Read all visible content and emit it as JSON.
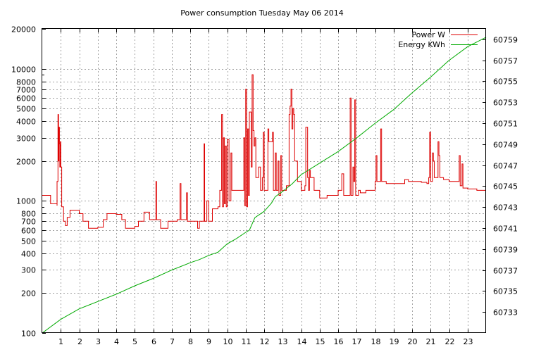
{
  "chart_data": {
    "type": "line",
    "title": "Power consumption Tuesday May 06 2014",
    "xlabel": "",
    "ylabel": "",
    "y2label": "",
    "xlim": [
      0,
      24
    ],
    "ylim": [
      100,
      20000
    ],
    "y_scale": "log",
    "y2lim": [
      60731,
      60760
    ],
    "grid": true,
    "legend_position": "top-right",
    "x_ticks": [
      "1",
      "2",
      "3",
      "4",
      "5",
      "6",
      "7",
      "8",
      "9",
      "10",
      "11",
      "12",
      "13",
      "14",
      "15",
      "16",
      "17",
      "18",
      "19",
      "20",
      "21",
      "22",
      "23"
    ],
    "y_ticks": [
      {
        "v": 100,
        "label": "100"
      },
      {
        "v": 200,
        "label": "200"
      },
      {
        "v": 300,
        "label": "300"
      },
      {
        "v": 400,
        "label": "400"
      },
      {
        "v": 500,
        "label": "500"
      },
      {
        "v": 600,
        "label": "600"
      },
      {
        "v": 700,
        "label": "700"
      },
      {
        "v": 800,
        "label": "800"
      },
      {
        "v": 1000,
        "label": "1000"
      },
      {
        "v": 2000,
        "label": "2000"
      },
      {
        "v": 3000,
        "label": "3000"
      },
      {
        "v": 4000,
        "label": "4000"
      },
      {
        "v": 5000,
        "label": "5000"
      },
      {
        "v": 6000,
        "label": "6000"
      },
      {
        "v": 7000,
        "label": "7000"
      },
      {
        "v": 8000,
        "label": "8000"
      },
      {
        "v": 10000,
        "label": "10000"
      },
      {
        "v": 20000,
        "label": "20000"
      }
    ],
    "y2_ticks": [
      "60733",
      "60735",
      "60737",
      "60739",
      "60741",
      "60743",
      "60745",
      "60747",
      "60749",
      "60751",
      "60753",
      "60755",
      "60757",
      "60759"
    ],
    "series": [
      {
        "name": "Power W",
        "axis": "left",
        "color": "#dd0000",
        "step": true,
        "points": [
          [
            0.0,
            1100
          ],
          [
            0.45,
            950
          ],
          [
            0.8,
            920
          ],
          [
            0.8,
            1400
          ],
          [
            0.85,
            4500
          ],
          [
            0.88,
            2000
          ],
          [
            0.9,
            3600
          ],
          [
            0.93,
            2700
          ],
          [
            0.95,
            1800
          ],
          [
            0.98,
            2800
          ],
          [
            1.0,
            1800
          ],
          [
            1.05,
            900
          ],
          [
            1.15,
            700
          ],
          [
            1.25,
            650
          ],
          [
            1.35,
            750
          ],
          [
            1.5,
            850
          ],
          [
            2.0,
            800
          ],
          [
            2.2,
            700
          ],
          [
            2.5,
            620
          ],
          [
            3.0,
            630
          ],
          [
            3.3,
            720
          ],
          [
            3.5,
            800
          ],
          [
            4.0,
            790
          ],
          [
            4.3,
            720
          ],
          [
            4.5,
            620
          ],
          [
            5.0,
            640
          ],
          [
            5.2,
            700
          ],
          [
            5.5,
            820
          ],
          [
            5.8,
            720
          ],
          [
            6.1,
            720
          ],
          [
            6.15,
            1400
          ],
          [
            6.18,
            720
          ],
          [
            6.4,
            620
          ],
          [
            6.8,
            700
          ],
          [
            7.3,
            720
          ],
          [
            7.45,
            1350
          ],
          [
            7.5,
            720
          ],
          [
            7.8,
            1150
          ],
          [
            7.85,
            700
          ],
          [
            8.4,
            620
          ],
          [
            8.5,
            700
          ],
          [
            8.6,
            700
          ],
          [
            8.75,
            2700
          ],
          [
            8.78,
            700
          ],
          [
            8.9,
            1000
          ],
          [
            9.0,
            700
          ],
          [
            9.2,
            870
          ],
          [
            9.5,
            900
          ],
          [
            9.6,
            1200
          ],
          [
            9.7,
            4500
          ],
          [
            9.75,
            900
          ],
          [
            9.8,
            3000
          ],
          [
            9.85,
            950
          ],
          [
            9.9,
            2600
          ],
          [
            9.95,
            900
          ],
          [
            10.0,
            2900
          ],
          [
            10.1,
            1000
          ],
          [
            10.2,
            2300
          ],
          [
            10.25,
            1200
          ],
          [
            10.4,
            1200
          ],
          [
            10.9,
            3000
          ],
          [
            10.95,
            920
          ],
          [
            11.0,
            7000
          ],
          [
            11.05,
            900
          ],
          [
            11.1,
            3500
          ],
          [
            11.15,
            1100
          ],
          [
            11.2,
            4700
          ],
          [
            11.3,
            1800
          ],
          [
            11.35,
            9000
          ],
          [
            11.4,
            3400
          ],
          [
            11.45,
            2600
          ],
          [
            11.5,
            3000
          ],
          [
            11.55,
            1500
          ],
          [
            11.7,
            1800
          ],
          [
            11.8,
            1200
          ],
          [
            11.9,
            1500
          ],
          [
            11.95,
            3300
          ],
          [
            12.0,
            1200
          ],
          [
            12.2,
            3500
          ],
          [
            12.25,
            2800
          ],
          [
            12.45,
            3300
          ],
          [
            12.5,
            1200
          ],
          [
            12.6,
            2300
          ],
          [
            12.65,
            1200
          ],
          [
            12.75,
            2000
          ],
          [
            12.8,
            1100
          ],
          [
            12.9,
            2200
          ],
          [
            12.95,
            1200
          ],
          [
            13.2,
            1300
          ],
          [
            13.35,
            4500
          ],
          [
            13.4,
            5200
          ],
          [
            13.45,
            7000
          ],
          [
            13.5,
            3500
          ],
          [
            13.55,
            5000
          ],
          [
            13.6,
            4500
          ],
          [
            13.65,
            2000
          ],
          [
            13.8,
            1400
          ],
          [
            14.0,
            1200
          ],
          [
            14.2,
            1300
          ],
          [
            14.25,
            3600
          ],
          [
            14.3,
            3600
          ],
          [
            14.35,
            1500
          ],
          [
            14.4,
            1200
          ],
          [
            14.45,
            1700
          ],
          [
            14.5,
            1500
          ],
          [
            14.7,
            1200
          ],
          [
            15.0,
            1050
          ],
          [
            15.4,
            1100
          ],
          [
            15.5,
            1100
          ],
          [
            16.0,
            1200
          ],
          [
            16.1,
            1200
          ],
          [
            16.2,
            1600
          ],
          [
            16.3,
            1100
          ],
          [
            16.65,
            6000
          ],
          [
            16.7,
            1100
          ],
          [
            16.8,
            1800
          ],
          [
            16.85,
            1400
          ],
          [
            16.9,
            5800
          ],
          [
            16.95,
            1100
          ],
          [
            17.1,
            1200
          ],
          [
            17.2,
            1150
          ],
          [
            17.5,
            1200
          ],
          [
            17.6,
            1200
          ],
          [
            17.8,
            1200
          ],
          [
            18.0,
            1400
          ],
          [
            18.05,
            2200
          ],
          [
            18.1,
            1400
          ],
          [
            18.3,
            3500
          ],
          [
            18.35,
            1400
          ],
          [
            18.4,
            1400
          ],
          [
            18.6,
            1350
          ],
          [
            18.8,
            1350
          ],
          [
            19.0,
            1350
          ],
          [
            19.6,
            1450
          ],
          [
            19.8,
            1400
          ],
          [
            20.0,
            1400
          ],
          [
            20.5,
            1380
          ],
          [
            20.8,
            1350
          ],
          [
            20.9,
            1500
          ],
          [
            20.95,
            3300
          ],
          [
            21.0,
            1400
          ],
          [
            21.1,
            2300
          ],
          [
            21.15,
            2000
          ],
          [
            21.2,
            1500
          ],
          [
            21.4,
            2800
          ],
          [
            21.45,
            2200
          ],
          [
            21.5,
            1500
          ],
          [
            21.7,
            1450
          ],
          [
            22.0,
            1400
          ],
          [
            22.5,
            1400
          ],
          [
            22.55,
            2200
          ],
          [
            22.6,
            1300
          ],
          [
            22.7,
            1900
          ],
          [
            22.75,
            1250
          ],
          [
            23.0,
            1230
          ],
          [
            23.5,
            1200
          ],
          [
            24.0,
            1200
          ]
        ]
      },
      {
        "name": "Energy KWh",
        "axis": "right",
        "color": "#00aa00",
        "step": false,
        "points": [
          [
            0.0,
            60731.0
          ],
          [
            1.0,
            60732.3
          ],
          [
            2.0,
            60733.3
          ],
          [
            3.0,
            60734.0
          ],
          [
            4.0,
            60734.7
          ],
          [
            5.0,
            60735.5
          ],
          [
            6.0,
            60736.2
          ],
          [
            7.0,
            60737.0
          ],
          [
            8.0,
            60737.7
          ],
          [
            8.5,
            60738.0
          ],
          [
            9.0,
            60738.4
          ],
          [
            9.5,
            60738.7
          ],
          [
            10.0,
            60739.5
          ],
          [
            10.5,
            60740.0
          ],
          [
            11.0,
            60740.6
          ],
          [
            11.2,
            60740.8
          ],
          [
            11.5,
            60742.0
          ],
          [
            12.0,
            60742.6
          ],
          [
            12.4,
            60743.4
          ],
          [
            12.6,
            60744.0
          ],
          [
            13.0,
            60744.5
          ],
          [
            13.5,
            60745.2
          ],
          [
            14.0,
            60746.1
          ],
          [
            15.0,
            60747.2
          ],
          [
            16.0,
            60748.3
          ],
          [
            17.0,
            60749.6
          ],
          [
            17.5,
            60750.3
          ],
          [
            18.0,
            60751.0
          ],
          [
            19.0,
            60752.3
          ],
          [
            20.0,
            60753.9
          ],
          [
            21.0,
            60755.4
          ],
          [
            22.0,
            60757.0
          ],
          [
            23.0,
            60758.3
          ],
          [
            24.0,
            60759.2
          ]
        ]
      }
    ]
  }
}
